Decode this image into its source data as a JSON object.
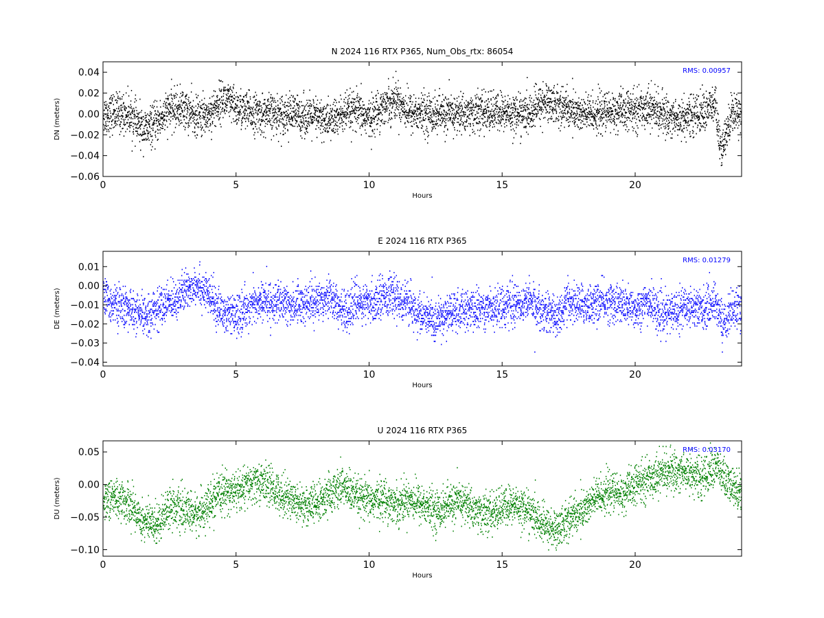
{
  "chart_data": [
    {
      "type": "scatter",
      "title": "N 2024 116 RTX  P365, Num_Obs_rtx: 86054",
      "xlabel": "Hours",
      "ylabel": "DN (meters)",
      "xlim": [
        0,
        24
      ],
      "ylim": [
        -0.06,
        0.05
      ],
      "xticks": [
        "0",
        "5",
        "10",
        "15",
        "20"
      ],
      "yticks": [
        "0.04",
        "0.02",
        "0.00",
        "−0.02",
        "−0.04",
        "−0.06"
      ],
      "ytick_values": [
        0.04,
        0.02,
        0.0,
        -0.02,
        -0.04,
        -0.06
      ],
      "xtick_values": [
        0,
        5,
        10,
        15,
        20
      ],
      "annotation": "RMS:  0.00957",
      "annotation_color": "#0000ff",
      "marker_color": "#000000",
      "grid": false,
      "series": [
        {
          "x": [
            0,
            0.5,
            1.0,
            1.3,
            1.6,
            2.0,
            2.5,
            3.0,
            3.5,
            4.0,
            4.5,
            5.0,
            5.5,
            6.0,
            7.0,
            8.0,
            8.5,
            9.0,
            9.5,
            10.0,
            10.5,
            11.0,
            11.5,
            12.0,
            13.0,
            14.0,
            15.0,
            16.0,
            16.5,
            17.0,
            18.0,
            19.0,
            20.0,
            20.5,
            21.0,
            21.5,
            22.0,
            22.5,
            23.0,
            23.2,
            23.4,
            23.6,
            24.0
          ],
          "y": [
            0.0,
            0.002,
            0.0,
            -0.01,
            -0.015,
            -0.008,
            0.005,
            0.006,
            -0.003,
            0.001,
            0.015,
            0.006,
            0.002,
            0.0,
            0.001,
            -0.003,
            -0.006,
            0.0,
            0.003,
            -0.004,
            0.008,
            0.015,
            0.002,
            0.001,
            0.0,
            0.002,
            0.002,
            0.0,
            0.012,
            0.01,
            0.0,
            0.002,
            0.004,
            0.008,
            0.0,
            -0.004,
            -0.002,
            0.002,
            0.01,
            -0.038,
            -0.02,
            0.002,
            0.003
          ]
        }
      ]
    },
    {
      "type": "scatter",
      "title": "E 2024 116 RTX  P365",
      "xlabel": "Hours",
      "ylabel": "DE (meters)",
      "xlim": [
        0,
        24
      ],
      "ylim": [
        -0.042,
        0.018
      ],
      "xticks": [
        "0",
        "5",
        "10",
        "15",
        "20"
      ],
      "yticks": [
        "0.01",
        "0.00",
        "−0.01",
        "−0.02",
        "−0.03",
        "−0.04"
      ],
      "ytick_values": [
        0.01,
        0.0,
        -0.01,
        -0.02,
        -0.03,
        -0.04
      ],
      "xtick_values": [
        0,
        5,
        10,
        15,
        20
      ],
      "annotation": "RMS:  0.01279",
      "annotation_color": "#0000ff",
      "marker_color": "#0000ff",
      "grid": false,
      "series": [
        {
          "x": [
            0,
            0.5,
            1.0,
            1.2,
            1.5,
            2.0,
            2.5,
            3.0,
            3.5,
            4.0,
            4.5,
            5.0,
            5.5,
            6.0,
            7.0,
            8.0,
            8.5,
            9.0,
            9.5,
            10.0,
            10.5,
            11.0,
            11.5,
            12.0,
            12.5,
            13.0,
            14.0,
            15.0,
            16.0,
            16.5,
            17.0,
            17.5,
            18.0,
            19.0,
            20.0,
            20.5,
            21.0,
            21.5,
            22.0,
            22.5,
            23.0,
            23.3,
            23.6,
            24.0
          ],
          "y": [
            -0.006,
            -0.01,
            -0.012,
            -0.014,
            -0.016,
            -0.012,
            -0.008,
            -0.004,
            0.002,
            -0.006,
            -0.014,
            -0.016,
            -0.01,
            -0.008,
            -0.01,
            -0.008,
            -0.004,
            -0.014,
            -0.008,
            -0.01,
            -0.004,
            -0.006,
            -0.01,
            -0.016,
            -0.018,
            -0.014,
            -0.012,
            -0.01,
            -0.008,
            -0.012,
            -0.016,
            -0.008,
            -0.01,
            -0.008,
            -0.012,
            -0.008,
            -0.016,
            -0.012,
            -0.01,
            -0.012,
            -0.008,
            -0.02,
            -0.012,
            -0.012
          ]
        }
      ]
    },
    {
      "type": "scatter",
      "title": "U 2024 116 RTX  P365",
      "xlabel": "Hours",
      "ylabel": "DU (meters)",
      "xlim": [
        0,
        24
      ],
      "ylim": [
        -0.11,
        0.067
      ],
      "xticks": [
        "0",
        "5",
        "10",
        "15",
        "20"
      ],
      "yticks": [
        "0.05",
        "0.00",
        "−0.05",
        "−0.10"
      ],
      "ytick_values": [
        0.05,
        0.0,
        -0.05,
        -0.1
      ],
      "xtick_values": [
        0,
        5,
        10,
        15,
        20
      ],
      "annotation": "RMS:  0.03170",
      "annotation_color": "#0000ff",
      "marker_color": "#008000",
      "grid": false,
      "series": [
        {
          "x": [
            0,
            0.5,
            1.0,
            1.5,
            2.0,
            2.5,
            3.0,
            3.5,
            4.0,
            4.5,
            5.0,
            5.5,
            6.0,
            6.5,
            7.0,
            7.5,
            8.0,
            8.5,
            9.0,
            9.5,
            10.0,
            10.5,
            11.0,
            11.5,
            12.0,
            12.5,
            13.0,
            13.5,
            14.0,
            14.5,
            15.0,
            15.5,
            16.0,
            16.5,
            17.0,
            17.5,
            18.0,
            18.5,
            19.0,
            19.5,
            20.0,
            20.5,
            21.0,
            21.5,
            22.0,
            22.5,
            23.0,
            23.5,
            24.0
          ],
          "y": [
            -0.02,
            -0.02,
            -0.03,
            -0.055,
            -0.06,
            -0.03,
            -0.04,
            -0.045,
            -0.03,
            -0.01,
            -0.01,
            0.0,
            0.005,
            -0.01,
            -0.02,
            -0.03,
            -0.03,
            -0.015,
            0.0,
            -0.02,
            -0.025,
            -0.02,
            -0.03,
            -0.02,
            -0.03,
            -0.04,
            -0.03,
            -0.025,
            -0.04,
            -0.045,
            -0.035,
            -0.03,
            -0.04,
            -0.06,
            -0.07,
            -0.05,
            -0.04,
            -0.02,
            -0.01,
            -0.015,
            0.0,
            0.01,
            0.02,
            0.02,
            0.02,
            0.01,
            0.03,
            0.0,
            -0.01
          ]
        }
      ]
    }
  ]
}
